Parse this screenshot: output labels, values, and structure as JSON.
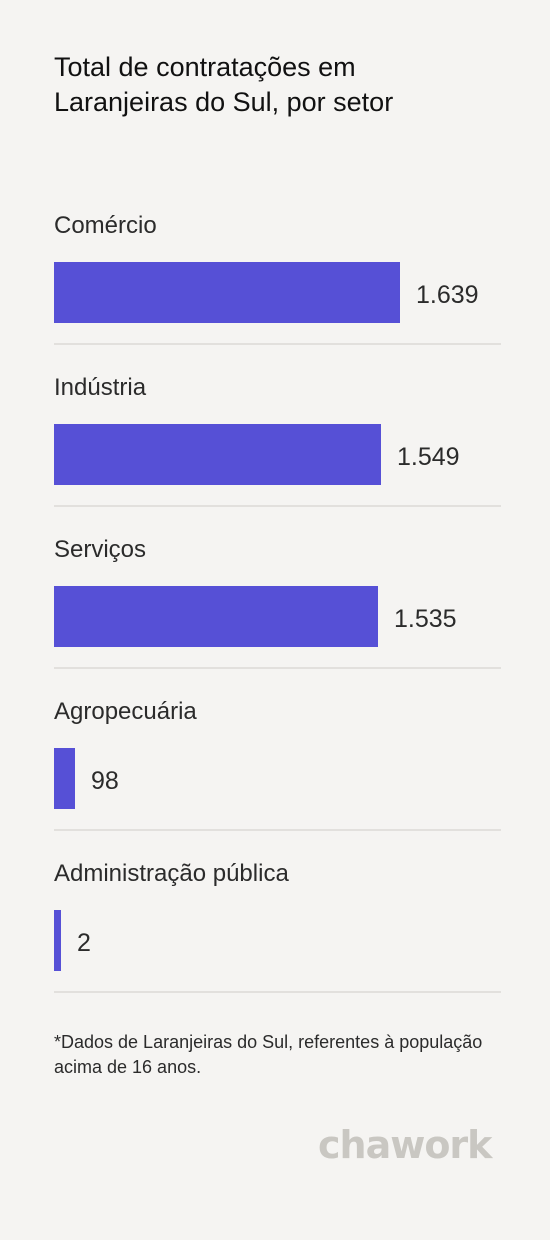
{
  "title": "Total de contratações em Laranjeiras do Sul, por setor",
  "footnote": "*Dados de Laranjeiras do Sul, referentes à população acima de 16 anos.",
  "brand": {
    "logo_text": "chawork",
    "logo_color": "#c9c7c2"
  },
  "colors": {
    "bar": "#5650d6",
    "background": "#f5f4f2"
  },
  "chart_data": {
    "type": "bar",
    "orientation": "horizontal",
    "title": "Total de contratações em Laranjeiras do Sul, por setor",
    "categories": [
      "Comércio",
      "Indústria",
      "Serviços",
      "Agropecuária",
      "Administração pública"
    ],
    "values": [
      1639,
      1549,
      1535,
      98,
      2
    ],
    "value_labels": [
      "1.639",
      "1.549",
      "1.535",
      "98",
      "2"
    ],
    "grid": false,
    "legend": "none"
  }
}
